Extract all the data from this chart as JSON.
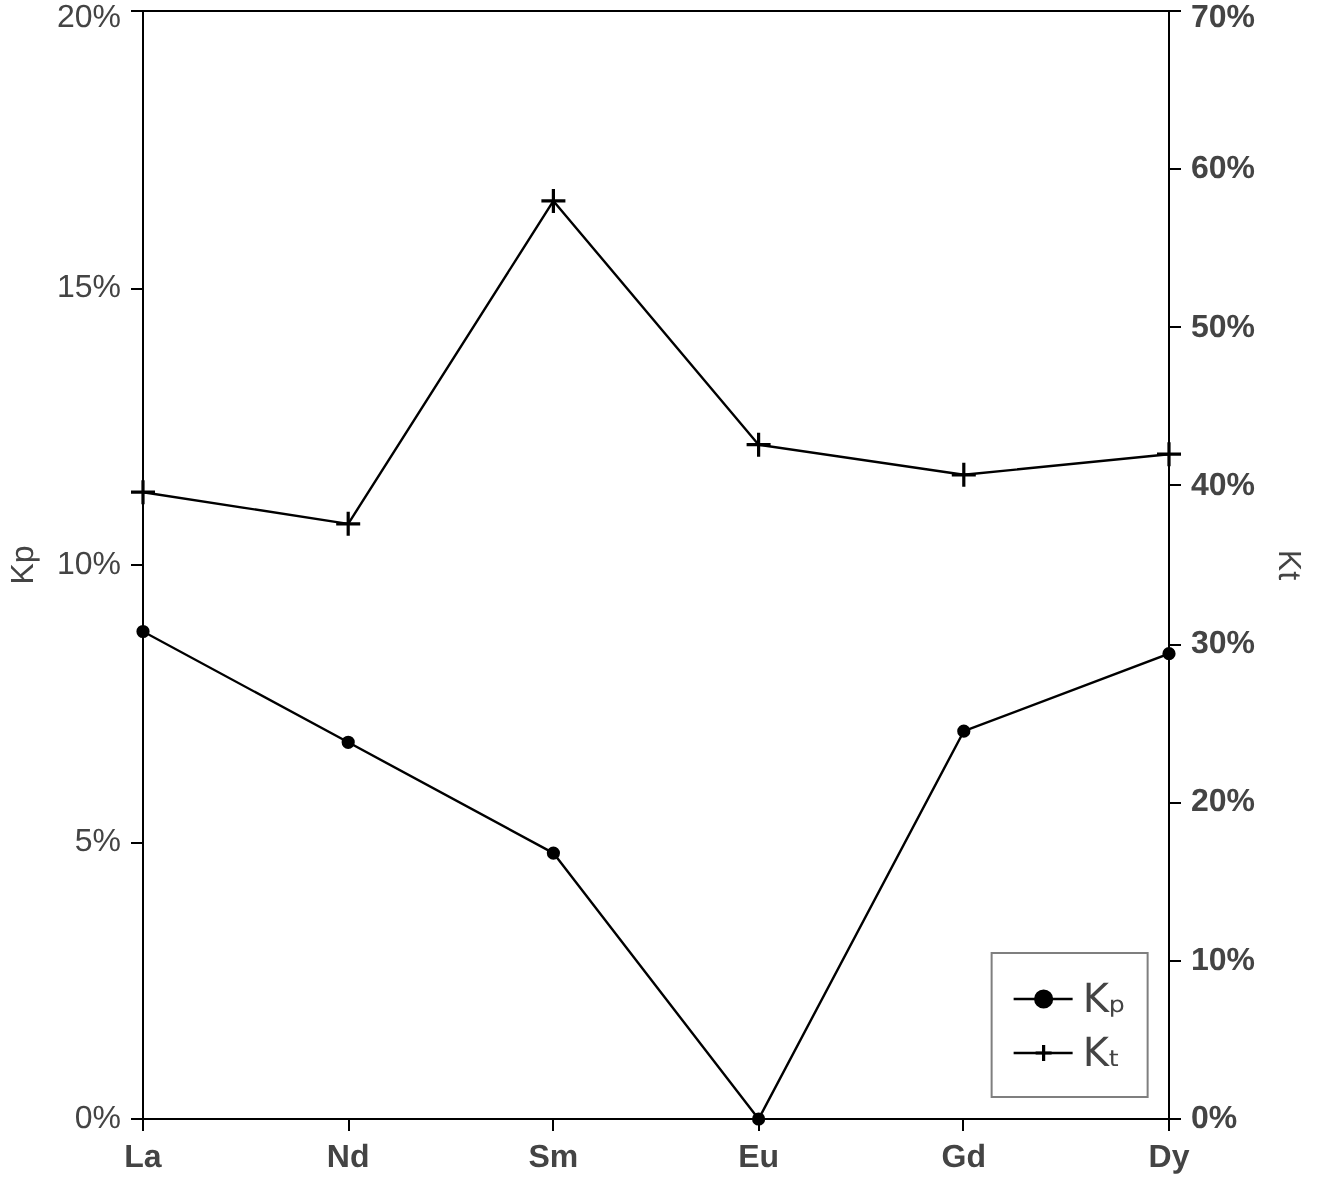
{
  "chart_data": {
    "type": "line",
    "categories": [
      "La",
      "Nd",
      "Sm",
      "Eu",
      "Gd",
      "Dy"
    ],
    "ylabel": "Kp",
    "y2label": "Kt",
    "ylim": [
      0,
      20
    ],
    "yticks": [
      {
        "value": 0,
        "label": "0%"
      },
      {
        "value": 5,
        "label": "5%"
      },
      {
        "value": 10,
        "label": "10%"
      },
      {
        "value": 15,
        "label": "15%"
      },
      {
        "value": 20,
        "label": "20%"
      }
    ],
    "y2lim": [
      0,
      70
    ],
    "y2ticks": [
      {
        "value": 0,
        "label": "0%"
      },
      {
        "value": 10,
        "label": "10%"
      },
      {
        "value": 20,
        "label": "20%"
      },
      {
        "value": 30,
        "label": "30%"
      },
      {
        "value": 40,
        "label": "40%"
      },
      {
        "value": 50,
        "label": "50%"
      },
      {
        "value": 60,
        "label": "60%"
      },
      {
        "value": 70,
        "label": "70%"
      }
    ],
    "series": [
      {
        "name": "Kₚ",
        "color": "#000000",
        "marker": "circle",
        "values": [
          8.8,
          6.8,
          4.8,
          0,
          7.0,
          8.4
        ]
      },
      {
        "name": "Kₜ",
        "color": "#000000",
        "marker": "cross",
        "axis": "y2",
        "values": [
          39.6,
          37.6,
          58,
          42.6,
          40.7,
          42
        ]
      }
    ],
    "grid": false,
    "legend": "bottom right",
    "line_style": "solid"
  }
}
